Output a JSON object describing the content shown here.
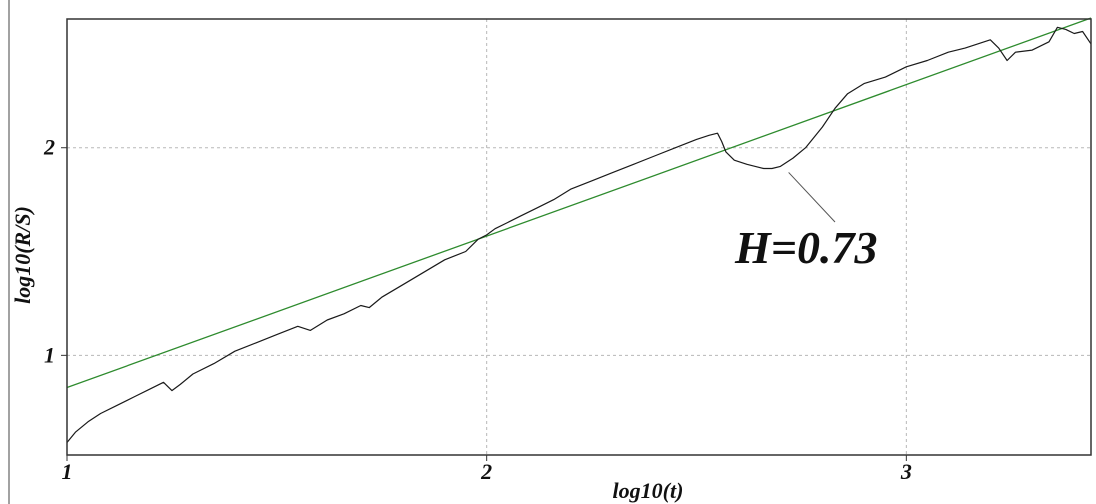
{
  "chart_data": {
    "type": "line",
    "title": "",
    "xlabel": "log10(t)",
    "ylabel": "log10(R/S)",
    "xlim": [
      1.0,
      3.44
    ],
    "ylim": [
      0.52,
      2.62
    ],
    "x_ticks": [
      1,
      2,
      3
    ],
    "y_ticks": [
      1,
      2
    ],
    "x_tick_labels": [
      "1",
      "2",
      "3"
    ],
    "y_tick_labels": [
      "1",
      "2"
    ],
    "grid": true,
    "colors": {
      "data": "#1a1a1a",
      "fit": "#2e8b2e",
      "grid": "#b8b8b8",
      "frame": "#333333"
    },
    "series": [
      {
        "x": [
          1.0,
          1.02,
          1.05,
          1.08,
          1.12,
          1.16,
          1.2,
          1.23,
          1.25,
          1.27,
          1.3,
          1.35,
          1.4,
          1.45,
          1.5,
          1.55,
          1.58,
          1.62,
          1.66,
          1.7,
          1.72,
          1.75,
          1.8,
          1.85,
          1.9,
          1.95,
          1.98,
          2.0,
          2.02,
          2.05,
          2.08,
          2.12,
          2.16,
          2.2,
          2.25,
          2.3,
          2.35,
          2.4,
          2.45,
          2.5,
          2.53,
          2.55,
          2.56,
          2.57,
          2.59,
          2.62,
          2.64,
          2.66,
          2.68,
          2.7,
          2.73,
          2.76,
          2.8,
          2.83,
          2.86,
          2.9,
          2.95,
          3.0,
          3.05,
          3.1,
          3.14,
          3.17,
          3.2,
          3.22,
          3.24,
          3.26,
          3.3,
          3.34,
          3.36,
          3.38,
          3.4,
          3.42,
          3.44
        ],
        "y": [
          0.58,
          0.63,
          0.68,
          0.72,
          0.76,
          0.8,
          0.84,
          0.87,
          0.83,
          0.86,
          0.91,
          0.96,
          1.02,
          1.06,
          1.1,
          1.14,
          1.12,
          1.17,
          1.2,
          1.24,
          1.23,
          1.28,
          1.34,
          1.4,
          1.46,
          1.5,
          1.56,
          1.58,
          1.61,
          1.64,
          1.67,
          1.71,
          1.75,
          1.8,
          1.84,
          1.88,
          1.92,
          1.96,
          2.0,
          2.04,
          2.06,
          2.07,
          2.03,
          1.98,
          1.94,
          1.92,
          1.91,
          1.9,
          1.9,
          1.91,
          1.95,
          2.0,
          2.1,
          2.19,
          2.26,
          2.31,
          2.34,
          2.39,
          2.42,
          2.46,
          2.48,
          2.5,
          2.52,
          2.48,
          2.42,
          2.46,
          2.47,
          2.51,
          2.58,
          2.57,
          2.55,
          2.56,
          2.5
        ]
      },
      {
        "x": [
          1.0,
          3.44
        ],
        "y": [
          0.845,
          2.625
        ]
      }
    ],
    "annotations": [
      {
        "text": "H=0.73",
        "points_to": {
          "x": 2.71,
          "y": 1.91
        }
      }
    ]
  }
}
